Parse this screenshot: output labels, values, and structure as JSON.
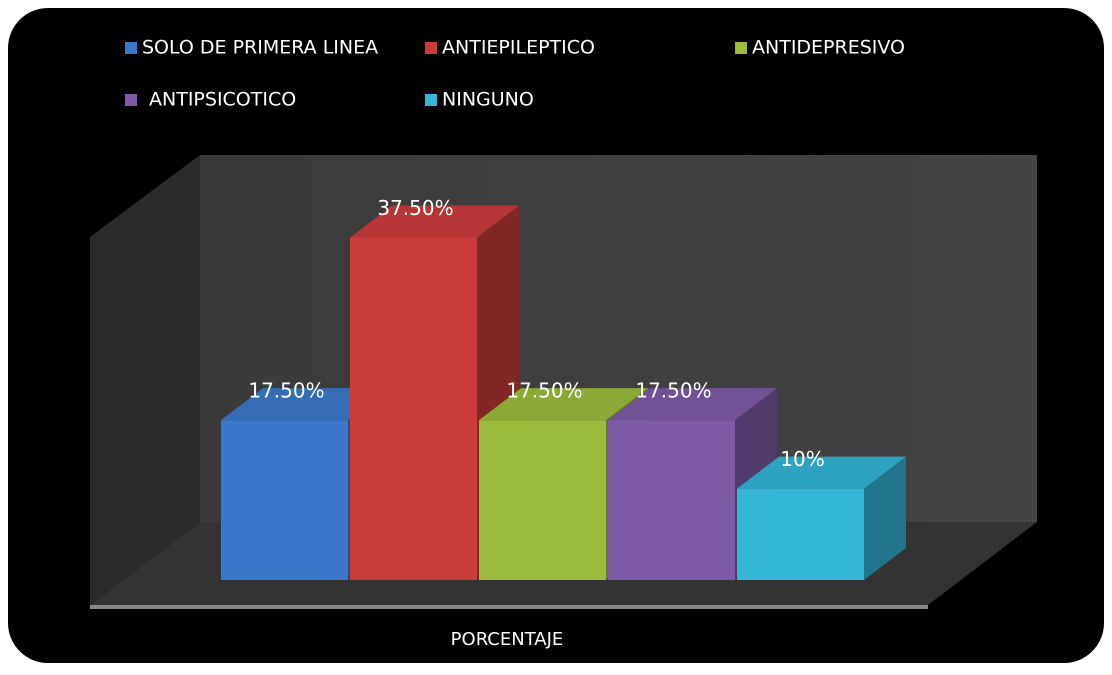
{
  "chart_data": {
    "type": "bar",
    "categories": [
      "PORCENTAJE"
    ],
    "ylim": [
      0,
      45
    ],
    "legend": "top",
    "series": [
      {
        "name": "SOLO DE PRIMERA LINEA",
        "color": "#3a78c9",
        "values": [
          17.5
        ],
        "value_labels": [
          "17.50%"
        ]
      },
      {
        "name": "ANTIEPILEPTICO",
        "color": "#c93c3a",
        "values": [
          37.5
        ],
        "value_labels": [
          "37.50%"
        ]
      },
      {
        "name": "ANTIDEPRESIVO",
        "color": "#9bbb3c",
        "values": [
          17.5
        ],
        "value_labels": [
          "17.50%"
        ]
      },
      {
        "name": "ANTIPSICOTICO",
        "color": "#7d5aa6",
        "values": [
          17.5
        ],
        "value_labels": [
          "17.50%"
        ]
      },
      {
        "name": "NINGUNO",
        "color": "#33b5d6",
        "values": [
          10
        ],
        "value_labels": [
          "10%"
        ]
      }
    ]
  }
}
